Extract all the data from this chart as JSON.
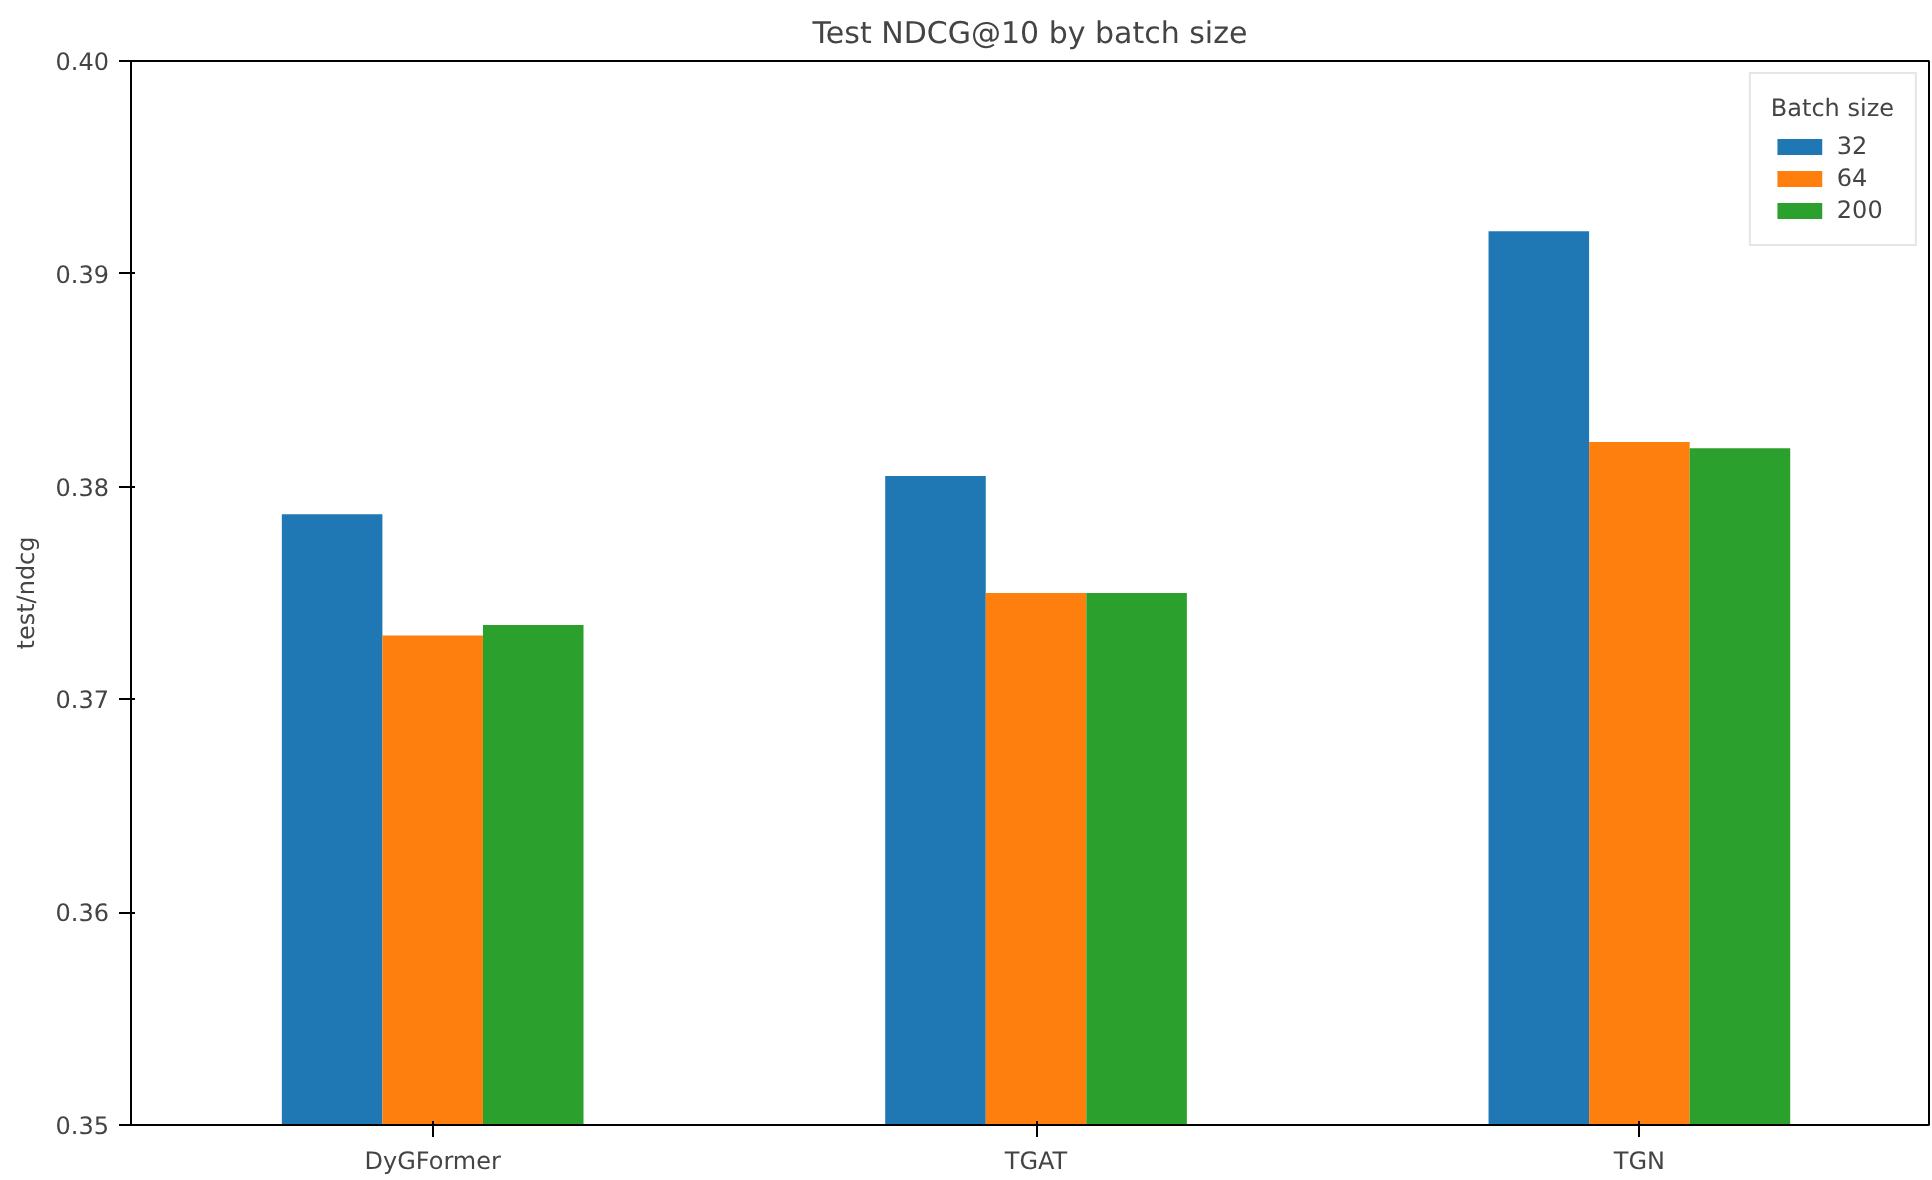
{
  "chart_data": {
    "type": "bar",
    "title": "Test NDCG@10 by batch size",
    "ylabel": "test/ndcg",
    "legend_title": "Batch size",
    "categories": [
      "DyGFormer",
      "TGAT",
      "TGN"
    ],
    "series": [
      {
        "name": "32",
        "color": "#1f77b4",
        "values": [
          0.3787,
          0.3805,
          0.392
        ]
      },
      {
        "name": "64",
        "color": "#ff7f0e",
        "values": [
          0.373,
          0.375,
          0.3821
        ]
      },
      {
        "name": "200",
        "color": "#2ca02c",
        "values": [
          0.3735,
          0.375,
          0.3818
        ]
      }
    ],
    "ylim": [
      0.35,
      0.4
    ],
    "yticks": [
      {
        "value": 0.35,
        "label": "0.35"
      },
      {
        "value": 0.36,
        "label": "0.36"
      },
      {
        "value": 0.37,
        "label": "0.37"
      },
      {
        "value": 0.38,
        "label": "0.38"
      },
      {
        "value": 0.39,
        "label": "0.39"
      },
      {
        "value": 0.4,
        "label": "0.40"
      }
    ],
    "grid": false,
    "legend": "top right"
  }
}
